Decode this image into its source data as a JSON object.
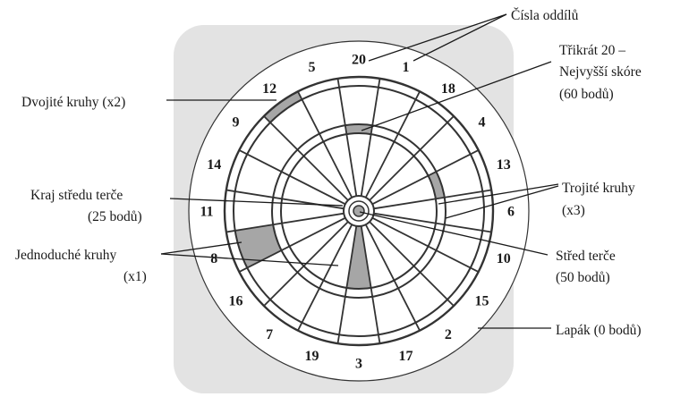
{
  "colors": {
    "panel": "#e3e3e3",
    "board": "#ffffff",
    "wire": "#333333",
    "highlight": "#a6a6a6",
    "text": "#1a1a1a"
  },
  "board": {
    "segment_numbers": [
      "20",
      "1",
      "18",
      "4",
      "13",
      "6",
      "10",
      "15",
      "2",
      "17",
      "3",
      "19",
      "7",
      "16",
      "8",
      "11",
      "14",
      "9",
      "12",
      "5"
    ],
    "highlighted_areas": [
      "double-ring-segment-12",
      "treble-ring-segment-20",
      "treble-ring-segment-13",
      "single-area-segment-8",
      "single-area-segment-3"
    ]
  },
  "labels": {
    "section_numbers": "Čísla oddílů",
    "treble20_line1": "Třikrát 20 –",
    "treble20_line2": "Nejvyšší skóre",
    "treble20_line3": "(60 bodů)",
    "double": "Dvojité kruhy (x2)",
    "outer_bull_line1": "Kraj středu terče",
    "outer_bull_line2": "(25 bodů)",
    "treble_line1": "Trojité kruhy",
    "treble_line2": "(x3)",
    "single_line1": "Jednoduché kruhy",
    "single_line2": "(x1)",
    "bull_line1": "Střed terče",
    "bull_line2": "(50 bodů)",
    "catch_ring": "Lapák (0 bodů)"
  }
}
